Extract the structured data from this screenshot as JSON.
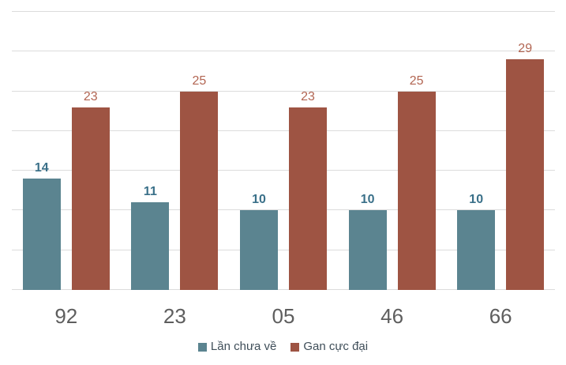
{
  "chart_data": {
    "type": "bar",
    "orientation": "vertical",
    "grouped": true,
    "title": "",
    "xlabel": "",
    "ylabel": "",
    "categories": [
      "92",
      "23",
      "05",
      "46",
      "66"
    ],
    "series": [
      {
        "name": "Lần chưa về",
        "values": [
          14,
          11,
          10,
          10,
          10
        ],
        "color": "#5B8490",
        "label_color": "#3A7089",
        "label_bold": true
      },
      {
        "name": "Gan cực đại",
        "values": [
          23,
          25,
          23,
          25,
          29
        ],
        "color": "#9E5443",
        "label_color": "#B26552",
        "label_bold": false
      }
    ],
    "ylim": [
      0,
      35
    ],
    "grid_step": 5,
    "grid": true,
    "y_axis_labels_visible": false,
    "data_labels": true,
    "legend_position": "bottom",
    "colors": {
      "gridline": "#DCDCDC",
      "category_label": "#5E5E5E",
      "legend_text": "#3F4E59",
      "background": "#FFFFFF"
    }
  }
}
